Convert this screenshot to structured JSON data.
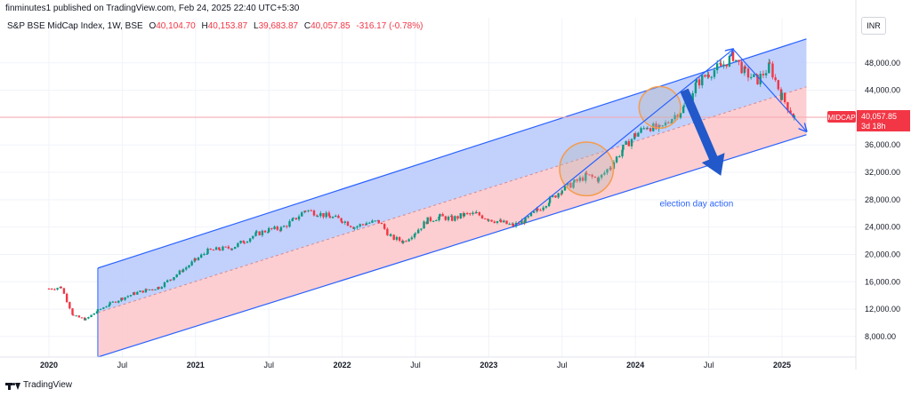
{
  "header": {
    "publisher": "finminutes1 published on TradingView.com, Feb 24, 2025 22:40 UTC+5:30",
    "symbol": "S&P BSE MidCap Index, 1W, BSE",
    "ohlc": {
      "O": "40,104.70",
      "H": "40,153.87",
      "L": "39,683.87",
      "C": "40,057.85",
      "change": "-316.17 (-0.78%)"
    },
    "ohlc_labels": {
      "O": "O",
      "H": "H",
      "L": "L",
      "C": "C"
    },
    "currency": "INR"
  },
  "footer": {
    "brand": "TradingView"
  },
  "colors": {
    "up": "#089981",
    "down": "#f23645",
    "upper_band": "#b7c8fb",
    "lower_band": "#fbc6c9",
    "channel_line": "#2962ff",
    "annotation": "#2962ff",
    "circle": "#f59c4c"
  },
  "chart_data": {
    "type": "candlestick",
    "interval": "1W",
    "x_ticks": [
      "2020",
      "Jul",
      "2021",
      "Jul",
      "2022",
      "Jul",
      "2023",
      "Jul",
      "2024",
      "Jul",
      "2025"
    ],
    "x_tick_dates": [
      "2020-01",
      "2020-07",
      "2021-01",
      "2021-07",
      "2022-01",
      "2022-07",
      "2023-01",
      "2023-07",
      "2024-01",
      "2024-07",
      "2025-01"
    ],
    "y_ticks": [
      "8,000.00",
      "12,000.00",
      "16,000.00",
      "20,000.00",
      "24,000.00",
      "28,000.00",
      "32,000.00",
      "36,000.00",
      "40,000.00",
      "44,000.00",
      "48,000.00"
    ],
    "ylim": [
      5000,
      52000
    ],
    "price_label": {
      "name": "MIDCAP",
      "value": "40,057.85",
      "countdown": "3d 18h",
      "price": 40057.85
    },
    "series": [
      {
        "name": "",
        "points": [
          [
            "2020-01",
            15000
          ],
          [
            "2020-02",
            15200
          ],
          [
            "2020-03",
            11000
          ],
          [
            "2020-04",
            10500
          ],
          [
            "2020-05",
            11800
          ],
          [
            "2020-06",
            12800
          ],
          [
            "2020-07",
            13600
          ],
          [
            "2020-08",
            14300
          ],
          [
            "2020-09",
            14800
          ],
          [
            "2020-10",
            15200
          ],
          [
            "2020-11",
            16500
          ],
          [
            "2020-12",
            17800
          ],
          [
            "2021-01",
            19200
          ],
          [
            "2021-02",
            20500
          ],
          [
            "2021-03",
            20800
          ],
          [
            "2021-04",
            21000
          ],
          [
            "2021-05",
            22000
          ],
          [
            "2021-06",
            23000
          ],
          [
            "2021-07",
            23600
          ],
          [
            "2021-08",
            23800
          ],
          [
            "2021-09",
            25000
          ],
          [
            "2021-10",
            26500
          ],
          [
            "2021-11",
            26000
          ],
          [
            "2021-12",
            25500
          ],
          [
            "2022-01",
            25000
          ],
          [
            "2022-02",
            24000
          ],
          [
            "2022-03",
            24600
          ],
          [
            "2022-04",
            24800
          ],
          [
            "2022-05",
            22500
          ],
          [
            "2022-06",
            21900
          ],
          [
            "2022-07",
            23300
          ],
          [
            "2022-08",
            25000
          ],
          [
            "2022-09",
            25500
          ],
          [
            "2022-10",
            25200
          ],
          [
            "2022-11",
            25800
          ],
          [
            "2022-12",
            25900
          ],
          [
            "2023-01",
            25200
          ],
          [
            "2023-02",
            24700
          ],
          [
            "2023-03",
            24200
          ],
          [
            "2023-04",
            25000
          ],
          [
            "2023-05",
            26500
          ],
          [
            "2023-06",
            28000
          ],
          [
            "2023-07",
            29500
          ],
          [
            "2023-08",
            30500
          ],
          [
            "2023-09",
            31500
          ],
          [
            "2023-10",
            31000
          ],
          [
            "2023-11",
            33000
          ],
          [
            "2023-12",
            35500
          ],
          [
            "2024-01",
            37500
          ],
          [
            "2024-02",
            38800
          ],
          [
            "2024-03",
            38200
          ],
          [
            "2024-04",
            40000
          ],
          [
            "2024-05",
            41500
          ],
          [
            "2024-06",
            45000
          ],
          [
            "2024-07",
            46500
          ],
          [
            "2024-08",
            47500
          ],
          [
            "2024-09",
            49000
          ],
          [
            "2024-10",
            46500
          ],
          [
            "2024-11",
            45500
          ],
          [
            "2024-12",
            47500
          ],
          [
            "2025-01",
            43000
          ],
          [
            "2025-02",
            40057.85
          ]
        ]
      }
    ],
    "channel": {
      "upper": [
        [
          "2020-05",
          18000
        ],
        [
          "2025-03",
          51500
        ]
      ],
      "middle": [
        [
          "2020-05",
          11500
        ],
        [
          "2025-03",
          44500
        ]
      ],
      "lower": [
        [
          "2020-05",
          5000
        ],
        [
          "2025-03",
          37500
        ]
      ]
    },
    "circles": [
      {
        "center": [
          "2023-09",
          32500
        ],
        "radius_months": 2.2
      },
      {
        "center": [
          "2024-03",
          41500
        ],
        "radius_months": 1.7
      }
    ],
    "trend_arrows": [
      [
        [
          "2023-03",
          24000
        ],
        [
          "2024-09",
          50000
        ]
      ],
      [
        [
          "2024-09",
          50000
        ],
        [
          "2025-03",
          38000
        ]
      ]
    ],
    "big_arrow": [
      [
        "2024-05",
        44000
      ],
      [
        "2024-08",
        31500
      ]
    ],
    "annotations": [
      {
        "text": "election day action",
        "at": [
          "2024-06",
          27000
        ]
      }
    ]
  }
}
